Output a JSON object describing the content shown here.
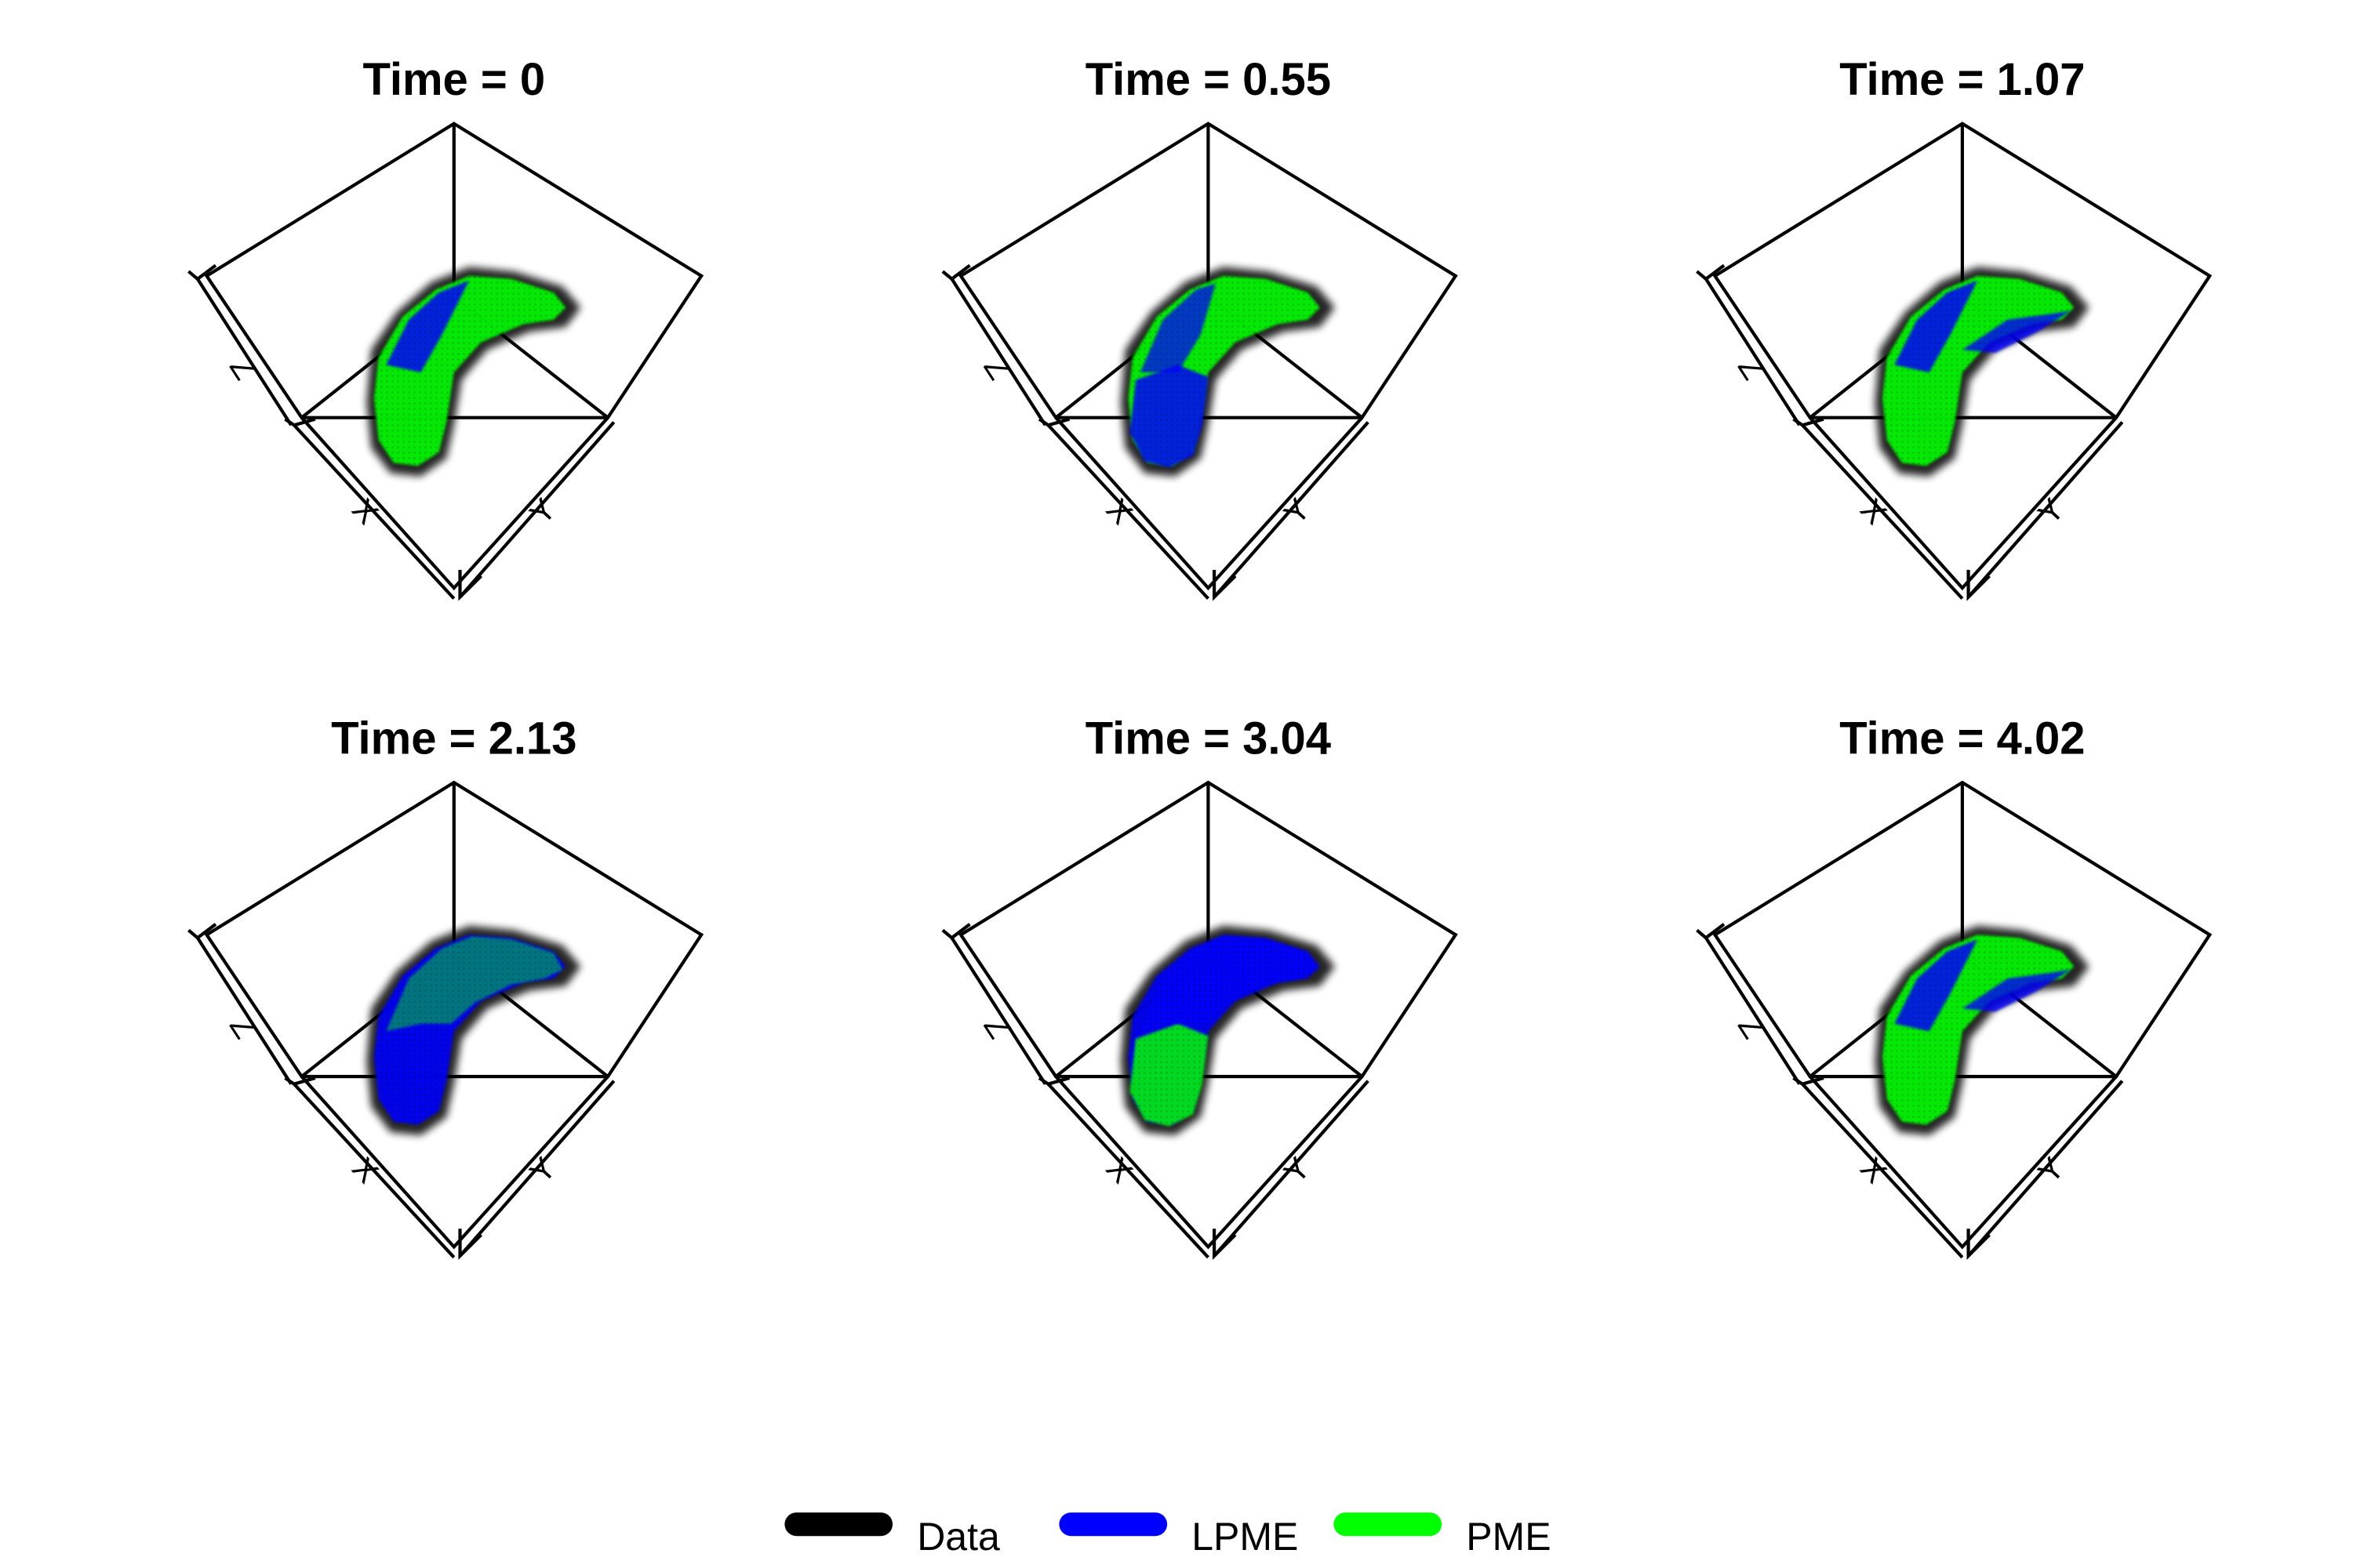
{
  "chart_data": {
    "type": "scatter",
    "layout": "2x3 panels",
    "panels": [
      {
        "title": "Time = 0",
        "time": 0
      },
      {
        "title": "Time = 0.55",
        "time": 0.55
      },
      {
        "title": "Time = 1.07",
        "time": 1.07
      },
      {
        "title": "Time = 2.13",
        "time": 2.13
      },
      {
        "title": "Time = 3.04",
        "time": 3.04
      },
      {
        "title": "Time = 4.02",
        "time": 4.02
      }
    ],
    "axis_labels": {
      "x": "X",
      "y": "Y",
      "z": "Z"
    },
    "series": [
      {
        "name": "Data",
        "color": "#000000"
      },
      {
        "name": "LPME",
        "color": "#0000ff"
      },
      {
        "name": "PME",
        "color": "#00ff00"
      }
    ],
    "legend_position": "bottom-center"
  }
}
